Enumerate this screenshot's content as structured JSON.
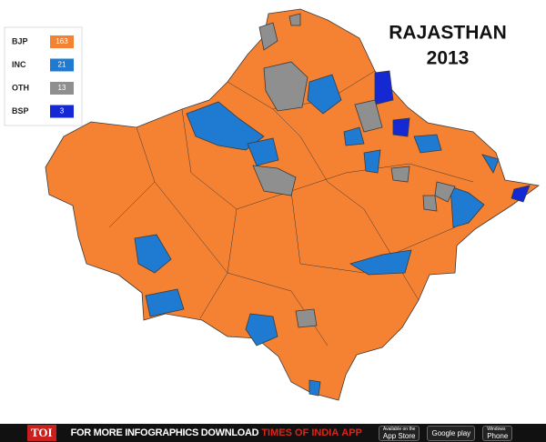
{
  "title": {
    "lines": [
      "RAJASTHAN",
      "2013"
    ]
  },
  "legend": {
    "items": [
      {
        "label": "BJP",
        "value": 163,
        "color": "#f58233"
      },
      {
        "label": "INC",
        "value": 21,
        "color": "#1f7ad1"
      },
      {
        "label": "OTH",
        "value": 13,
        "color": "#8f8f8f"
      },
      {
        "label": "BSP",
        "value": 3,
        "color": "#1428d4"
      }
    ]
  },
  "footer": {
    "logo": "TOI",
    "text": "FOR MORE INFOGRAPHICS DOWNLOAD",
    "brand": "TIMES OF INDIA",
    "app": "APP",
    "badges": [
      {
        "small": "Available on the",
        "large": "App Store"
      },
      {
        "large": "Google play"
      },
      {
        "small": "Windows",
        "large": "Phone"
      }
    ]
  }
}
